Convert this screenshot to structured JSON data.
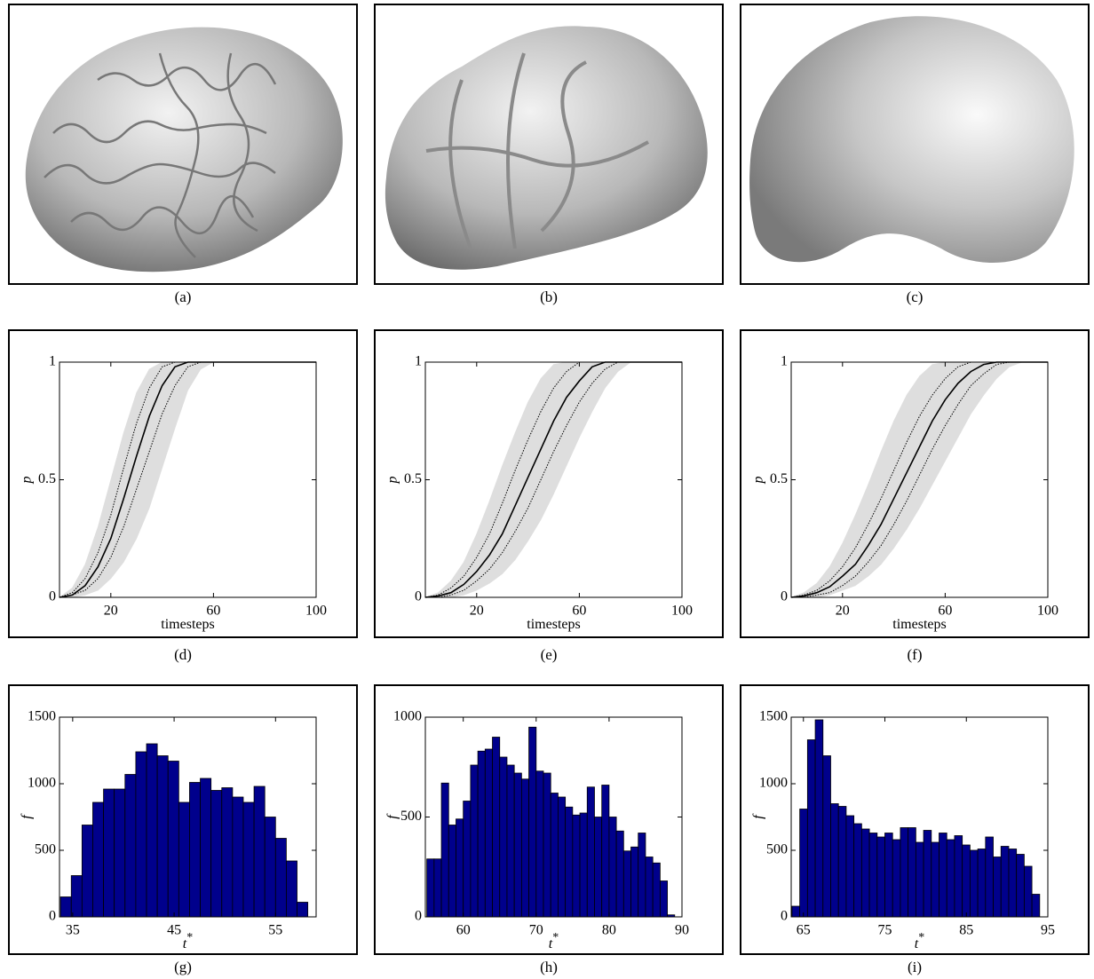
{
  "captions": [
    "(a)",
    "(b)",
    "(c)",
    "(d)",
    "(e)",
    "(f)",
    "(g)",
    "(h)",
    "(i)"
  ],
  "chart_data": [
    {
      "type": "line",
      "xlabel": "timesteps",
      "ylabel": "p",
      "color": "#000000",
      "band_color": "#dedede",
      "xlim": [
        0,
        100
      ],
      "ylim": [
        0,
        1
      ],
      "xticks": [
        20,
        60,
        100
      ],
      "yticks": [
        0,
        0.5,
        1
      ],
      "x": [
        0,
        5,
        10,
        15,
        20,
        25,
        30,
        35,
        40,
        45,
        50,
        55,
        60,
        65,
        70,
        75,
        80,
        85,
        90,
        95,
        100
      ],
      "values": [
        0,
        0.01,
        0.05,
        0.13,
        0.25,
        0.42,
        0.6,
        0.77,
        0.9,
        0.98,
        1,
        1,
        1,
        1,
        1,
        1,
        1,
        1,
        1,
        1,
        1
      ],
      "dotted_high": [
        0,
        0.02,
        0.08,
        0.19,
        0.35,
        0.55,
        0.74,
        0.89,
        0.98,
        1,
        1,
        1,
        1,
        1,
        1,
        1,
        1,
        1,
        1,
        1,
        1
      ],
      "dotted_low": [
        0,
        0.01,
        0.03,
        0.08,
        0.17,
        0.3,
        0.46,
        0.62,
        0.78,
        0.9,
        0.98,
        1,
        1,
        1,
        1,
        1,
        1,
        1,
        1,
        1,
        1
      ],
      "band_high": [
        0,
        0.04,
        0.14,
        0.3,
        0.5,
        0.7,
        0.87,
        0.97,
        1,
        1,
        1,
        1,
        1,
        1,
        1,
        1,
        1,
        1,
        1,
        1,
        1
      ],
      "band_low": [
        0,
        0,
        0.01,
        0.03,
        0.08,
        0.15,
        0.25,
        0.38,
        0.55,
        0.72,
        0.88,
        0.97,
        1,
        1,
        1,
        1,
        1,
        1,
        1,
        1,
        1
      ]
    },
    {
      "type": "line",
      "xlabel": "timesteps",
      "ylabel": "p",
      "color": "#000000",
      "band_color": "#dedede",
      "xlim": [
        0,
        100
      ],
      "ylim": [
        0,
        1
      ],
      "xticks": [
        20,
        60,
        100
      ],
      "yticks": [
        0,
        0.5,
        1
      ],
      "x": [
        0,
        5,
        10,
        15,
        20,
        25,
        30,
        35,
        40,
        45,
        50,
        55,
        60,
        65,
        70,
        75,
        80,
        85,
        90,
        95,
        100
      ],
      "values": [
        0,
        0.006,
        0.02,
        0.055,
        0.11,
        0.18,
        0.27,
        0.39,
        0.51,
        0.63,
        0.75,
        0.85,
        0.92,
        0.98,
        1,
        1,
        1,
        1,
        1,
        1,
        1
      ],
      "dotted_high": [
        0,
        0.01,
        0.04,
        0.09,
        0.17,
        0.27,
        0.4,
        0.54,
        0.67,
        0.79,
        0.89,
        0.96,
        1,
        1,
        1,
        1,
        1,
        1,
        1,
        1,
        1
      ],
      "dotted_low": [
        0,
        0,
        0.01,
        0.03,
        0.07,
        0.12,
        0.19,
        0.28,
        0.38,
        0.5,
        0.62,
        0.73,
        0.83,
        0.91,
        0.97,
        1,
        1,
        1,
        1,
        1,
        1
      ],
      "band_high": [
        0,
        0.02,
        0.07,
        0.15,
        0.27,
        0.41,
        0.56,
        0.7,
        0.83,
        0.93,
        0.99,
        1,
        1,
        1,
        1,
        1,
        1,
        1,
        1,
        1,
        1
      ],
      "band_low": [
        0,
        0,
        0,
        0.01,
        0.03,
        0.06,
        0.1,
        0.16,
        0.24,
        0.33,
        0.44,
        0.56,
        0.68,
        0.79,
        0.89,
        0.96,
        1,
        1,
        1,
        1,
        1
      ]
    },
    {
      "type": "line",
      "xlabel": "timesteps",
      "ylabel": "p",
      "color": "#000000",
      "band_color": "#dedede",
      "xlim": [
        0,
        100
      ],
      "ylim": [
        0,
        1
      ],
      "xticks": [
        20,
        60,
        100
      ],
      "yticks": [
        0,
        0.5,
        1
      ],
      "x": [
        0,
        5,
        10,
        15,
        20,
        25,
        30,
        35,
        40,
        45,
        50,
        55,
        60,
        65,
        70,
        75,
        80,
        85,
        90,
        95,
        100
      ],
      "values": [
        0,
        0.006,
        0.02,
        0.045,
        0.09,
        0.14,
        0.22,
        0.31,
        0.42,
        0.53,
        0.64,
        0.75,
        0.84,
        0.91,
        0.96,
        0.99,
        1,
        1,
        1,
        1,
        1
      ],
      "dotted_high": [
        0,
        0.01,
        0.03,
        0.07,
        0.13,
        0.21,
        0.31,
        0.42,
        0.54,
        0.66,
        0.77,
        0.86,
        0.93,
        0.98,
        1,
        1,
        1,
        1,
        1,
        1,
        1
      ],
      "dotted_low": [
        0,
        0,
        0.01,
        0.02,
        0.05,
        0.09,
        0.15,
        0.22,
        0.31,
        0.41,
        0.52,
        0.63,
        0.73,
        0.82,
        0.9,
        0.95,
        0.99,
        1,
        1,
        1,
        1
      ],
      "band_high": [
        0,
        0.02,
        0.06,
        0.13,
        0.23,
        0.35,
        0.48,
        0.62,
        0.75,
        0.86,
        0.94,
        0.99,
        1,
        1,
        1,
        1,
        1,
        1,
        1,
        1,
        1
      ],
      "band_low": [
        0,
        0,
        0,
        0.01,
        0.03,
        0.05,
        0.09,
        0.14,
        0.21,
        0.29,
        0.38,
        0.48,
        0.58,
        0.68,
        0.78,
        0.86,
        0.93,
        0.98,
        1,
        1,
        1
      ]
    },
    {
      "type": "histogram",
      "xlabel": "t",
      "xlabel_sup": "*",
      "ylabel": "f",
      "color": "#00008c",
      "xlim": [
        33.7,
        59
      ],
      "ylim": [
        0,
        1500
      ],
      "xticks": [
        35,
        45,
        55
      ],
      "yticks": [
        0,
        500,
        1000,
        1500
      ],
      "bins": [
        33.8,
        34.86,
        35.92,
        36.98,
        38.04,
        39.1,
        40.16,
        41.22,
        42.28,
        43.34,
        44.4,
        45.46,
        46.52,
        47.58,
        48.64,
        49.7,
        50.76,
        51.82,
        52.88,
        53.94,
        55,
        56.06,
        57.12,
        58.18
      ],
      "values": [
        150,
        310,
        690,
        860,
        960,
        960,
        1070,
        1240,
        1300,
        1210,
        1170,
        860,
        1010,
        1040,
        950,
        970,
        900,
        860,
        980,
        750,
        590,
        420,
        110
      ]
    },
    {
      "type": "histogram",
      "xlabel": "t",
      "xlabel_sup": "*",
      "ylabel": "f",
      "color": "#00008c",
      "xlim": [
        54.8,
        90
      ],
      "ylim": [
        0,
        1000
      ],
      "xticks": [
        60,
        70,
        80,
        90
      ],
      "yticks": [
        0,
        500,
        1000
      ],
      "bins": [
        55,
        56,
        57,
        58,
        59,
        60,
        61,
        62,
        63,
        64,
        65,
        66,
        67,
        68,
        69,
        70,
        71,
        72,
        73,
        74,
        75,
        76,
        77,
        78,
        79,
        80,
        81,
        82,
        83,
        84,
        85,
        86,
        87,
        88,
        89
      ],
      "values": [
        290,
        290,
        670,
        460,
        490,
        580,
        760,
        830,
        840,
        900,
        800,
        760,
        720,
        690,
        950,
        730,
        720,
        620,
        600,
        550,
        510,
        520,
        650,
        500,
        660,
        500,
        430,
        330,
        350,
        420,
        300,
        270,
        180,
        10
      ]
    },
    {
      "type": "histogram",
      "xlabel": "t",
      "xlabel_sup": "*",
      "ylabel": "f",
      "color": "#00008c",
      "xlim": [
        63.5,
        95
      ],
      "ylim": [
        0,
        1500
      ],
      "xticks": [
        65,
        75,
        85,
        95
      ],
      "yticks": [
        0,
        500,
        1000,
        1500
      ],
      "bins": [
        63.6,
        64.55,
        65.5,
        66.45,
        67.4,
        68.35,
        69.3,
        70.25,
        71.2,
        72.15,
        73.1,
        74.05,
        75,
        75.95,
        76.9,
        77.85,
        78.8,
        79.75,
        80.7,
        81.65,
        82.6,
        83.55,
        84.5,
        85.45,
        86.4,
        87.35,
        88.3,
        89.25,
        90.2,
        91.15,
        92.1,
        93.05,
        94
      ],
      "values": [
        80,
        810,
        1330,
        1480,
        1210,
        850,
        830,
        760,
        700,
        660,
        630,
        600,
        630,
        580,
        670,
        670,
        560,
        650,
        560,
        630,
        580,
        610,
        540,
        500,
        510,
        600,
        450,
        530,
        510,
        470,
        380,
        170
      ]
    }
  ]
}
